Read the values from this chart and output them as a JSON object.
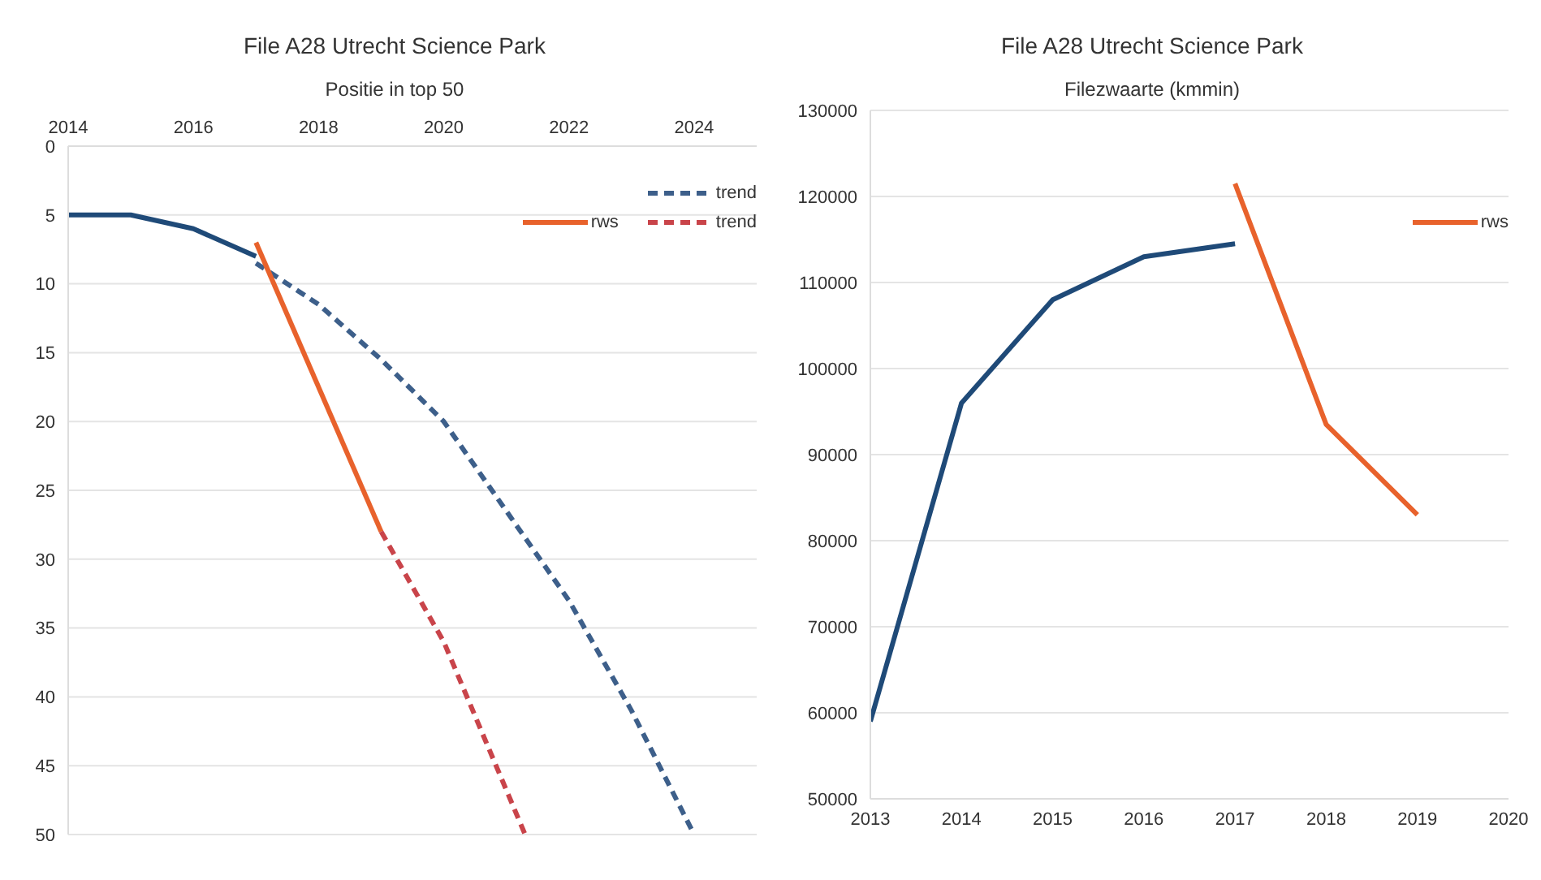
{
  "chart_data": [
    {
      "type": "line",
      "title": "File A28 Utrecht Science Park",
      "subtitle": "Positie in top 50",
      "xlim": [
        2014,
        2025
      ],
      "xticks": [
        2014,
        2016,
        2018,
        2020,
        2022,
        2024
      ],
      "ylim": [
        50,
        0
      ],
      "yticks": [
        0,
        5,
        10,
        15,
        20,
        25,
        30,
        35,
        40,
        45,
        50
      ],
      "grid": "y",
      "legend": "top right",
      "series": [
        {
          "color": "#1f4a78",
          "x": [
            2014,
            2015,
            2016,
            2017
          ],
          "values": [
            5,
            5,
            6,
            8
          ]
        },
        {
          "name": "trend",
          "color": "#3d5f8a",
          "line_style": "dashed",
          "x": [
            2017,
            2018,
            2019,
            2020,
            2021,
            2022,
            2023,
            2024
          ],
          "values": [
            8.5,
            11.5,
            15.5,
            20,
            26.5,
            33,
            41,
            50
          ]
        },
        {
          "name": "rws",
          "color": "#e8622c",
          "x": [
            2017,
            2019
          ],
          "values": [
            7,
            28
          ]
        },
        {
          "name": "trend",
          "color": "#c9444a",
          "line_style": "dashed",
          "x": [
            2019,
            2020,
            2021.3
          ],
          "values": [
            28,
            36,
            50
          ]
        }
      ]
    },
    {
      "type": "line",
      "title": "File A28 Utrecht Science Park",
      "subtitle": "Filezwaarte (kmmin)",
      "xlim": [
        2013,
        2020
      ],
      "xticks": [
        2013,
        2014,
        2015,
        2016,
        2017,
        2018,
        2019,
        2020
      ],
      "ylim": [
        50000,
        130000
      ],
      "yticks": [
        50000,
        60000,
        70000,
        80000,
        90000,
        100000,
        110000,
        120000,
        130000
      ],
      "grid": "y",
      "legend": "top right",
      "series": [
        {
          "color": "#1f4a78",
          "x": [
            2013,
            2014,
            2015,
            2016,
            2017
          ],
          "values": [
            59000,
            96000,
            108000,
            113000,
            114500
          ]
        },
        {
          "name": "rws",
          "color": "#e8622c",
          "x": [
            2017,
            2018,
            2019
          ],
          "values": [
            121500,
            93500,
            83000
          ]
        }
      ]
    }
  ]
}
